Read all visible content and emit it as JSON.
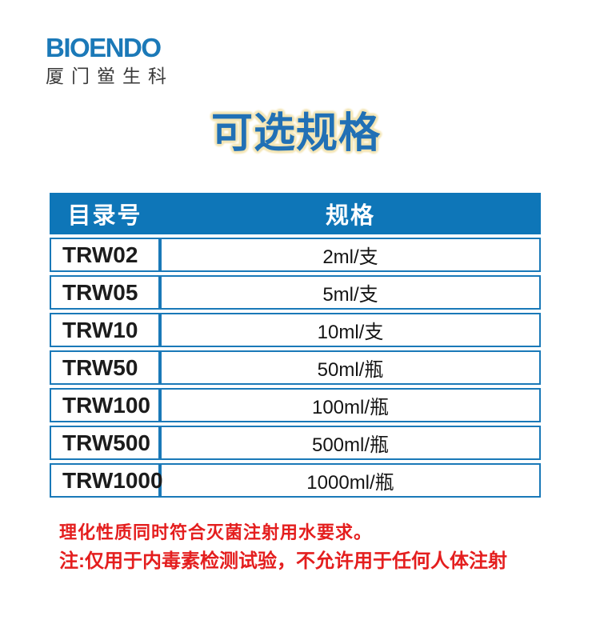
{
  "logo": {
    "brand": "BIOENDO",
    "company": "厦门鲎生科"
  },
  "title": "可选规格",
  "table": {
    "headers": [
      "目录号",
      "规格"
    ],
    "rows": [
      {
        "catalog": "TRW02",
        "spec": "2ml/支"
      },
      {
        "catalog": "TRW05",
        "spec": "5ml/支"
      },
      {
        "catalog": "TRW10",
        "spec": "10ml/支"
      },
      {
        "catalog": "TRW50",
        "spec": "50ml/瓶"
      },
      {
        "catalog": "TRW100",
        "spec": "100ml/瓶"
      },
      {
        "catalog": "TRW500",
        "spec": "500ml/瓶"
      },
      {
        "catalog": "TRW1000",
        "spec": "1000ml/瓶"
      }
    ]
  },
  "notes": {
    "line1": "理化性质同时符合灭菌注射用水要求。",
    "line2": "注:仅用于内毒素检测试验，不允许用于任何人体注射"
  },
  "colors": {
    "brand_blue": "#1b79b8",
    "title_blue": "#2170b5",
    "title_glow": "#f3e5b5",
    "header_bg": "#0e76b8",
    "border_blue": "#1a79b8",
    "note_red": "#e41e1e"
  }
}
